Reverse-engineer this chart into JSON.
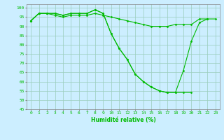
{
  "xlabel": "Humidité relative (%)",
  "bg_color": "#cceeff",
  "grid_color": "#99ccbb",
  "line_color": "#00bb00",
  "ylim": [
    45,
    102
  ],
  "xlim": [
    -0.5,
    23.5
  ],
  "yticks": [
    45,
    50,
    55,
    60,
    65,
    70,
    75,
    80,
    85,
    90,
    95,
    100
  ],
  "xticks": [
    0,
    1,
    2,
    3,
    4,
    5,
    6,
    7,
    8,
    9,
    10,
    11,
    12,
    13,
    14,
    15,
    16,
    17,
    18,
    19,
    20,
    21,
    22,
    23
  ],
  "series1_x": [
    0,
    1,
    2,
    3,
    4,
    5,
    6,
    7,
    8,
    9,
    10,
    11,
    12,
    13,
    14,
    15,
    16,
    17,
    18,
    19,
    20
  ],
  "series1_y": [
    93,
    97,
    97,
    97,
    96,
    97,
    97,
    97,
    99,
    97,
    86,
    78,
    72,
    64,
    60,
    57,
    55,
    54,
    54,
    54,
    54
  ],
  "series2_x": [
    0,
    1,
    2,
    3,
    4,
    5,
    6,
    7,
    8,
    9,
    10,
    11,
    12,
    13,
    14,
    15,
    16,
    17,
    18,
    19,
    20,
    21,
    22
  ],
  "series2_y": [
    93,
    97,
    97,
    97,
    96,
    97,
    97,
    97,
    99,
    97,
    86,
    78,
    72,
    64,
    60,
    57,
    55,
    54,
    54,
    66,
    82,
    92,
    94
  ],
  "series3_x": [
    0,
    1,
    2,
    3,
    4,
    5,
    6,
    7,
    8,
    9,
    10,
    11,
    12,
    13,
    14,
    15,
    16,
    17,
    18,
    19,
    20,
    21,
    22,
    23
  ],
  "series3_y": [
    93,
    97,
    97,
    96,
    95,
    96,
    96,
    96,
    97,
    96,
    95,
    94,
    93,
    92,
    91,
    90,
    90,
    90,
    91,
    91,
    91,
    94,
    94,
    94
  ]
}
